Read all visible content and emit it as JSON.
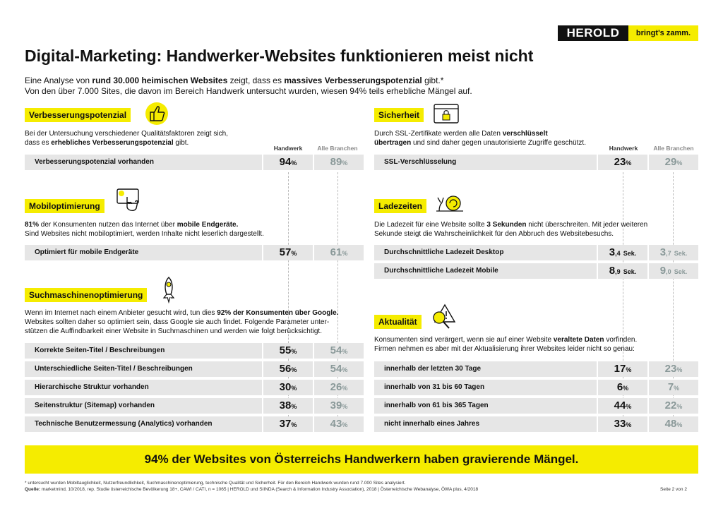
{
  "brand": {
    "logo": "HEROLD",
    "slogan": "bringt's zamm."
  },
  "title": "Digital-Marketing: Handwerker-Websites funktionieren meist nicht",
  "intro": {
    "line1_a": "Eine Analyse von ",
    "line1_b": "rund 30.000 heimischen Websites",
    "line1_c": " zeigt, dass es ",
    "line1_d": "massives Verbesserungspotenzial",
    "line1_e": " gibt.*",
    "line2": "Von den über 7.000 Sites, die davon im Bereich Handwerk untersucht wurden, wiesen 94% teils erhebliche Mängel auf."
  },
  "col_headers": {
    "handwerk": "Handwerk",
    "alle": "Alle Branchen"
  },
  "verbesserung": {
    "title": "Verbesserungspotenzial",
    "desc_1": "Bei der Untersuchung verschiedener Qualitätsfaktoren zeigt sich,",
    "desc_2a": "dass es ",
    "desc_2b": "erhebliches Verbesserungspotenzial",
    "desc_2c": " gibt.",
    "rows": [
      {
        "label": "Verbesserungspotenzial vorhanden",
        "v1": "94",
        "v2": "89"
      }
    ]
  },
  "mobil": {
    "title": "Mobiloptimierung",
    "desc_1a": "81%",
    "desc_1b": " der Konsumenten nutzen das Internet über ",
    "desc_1c": "mobile Endgeräte.",
    "desc_2": "Sind Websites nicht mobiloptimiert, werden Inhalte nicht leserlich dargestellt.",
    "rows": [
      {
        "label": "Optimiert für mobile Endgeräte",
        "v1": "57",
        "v2": "61"
      }
    ]
  },
  "seo": {
    "title": "Suchmaschinenoptimierung",
    "desc_1a": "Wenn im Internet nach einem Anbieter gesucht wird, tun dies ",
    "desc_1b": "92% der Konsumenten über Google.",
    "desc_2": "Websites sollten daher so optimiert sein, dass Google sie auch findet. Folgende Parameter unter-",
    "desc_3": "stützen die Auffindbarkeit einer Website in Suchmaschinen und werden wie folgt berücksichtigt.",
    "rows": [
      {
        "label": "Korrekte Seiten-Titel / Beschreibungen",
        "v1": "55",
        "v2": "54"
      },
      {
        "label": "Unterschiedliche Seiten-Titel / Beschreibungen",
        "v1": "56",
        "v2": "54"
      },
      {
        "label": "Hierarchische Struktur vorhanden",
        "v1": "30",
        "v2": "26"
      },
      {
        "label": "Seitenstruktur (Sitemap) vorhanden",
        "v1": "38",
        "v2": "39"
      },
      {
        "label": "Technische Benutzermessung (Analytics) vorhanden",
        "v1": "37",
        "v2": "43"
      }
    ]
  },
  "sicherheit": {
    "title": "Sicherheit",
    "desc_1a": "Durch SSL-Zertifikate werden alle Daten ",
    "desc_1b": "verschlüsselt",
    "desc_2a": "übertragen",
    "desc_2b": " und sind daher gegen unautorisierte Zugriffe geschützt.",
    "rows": [
      {
        "label": "SSL-Verschlüsselung",
        "v1": "23",
        "v2": "29"
      }
    ]
  },
  "ladezeiten": {
    "title": "Ladezeiten",
    "desc_1a": "Die Ladezeit für eine Website sollte ",
    "desc_1b": "3 Sekunden",
    "desc_1c": " nicht überschreiten. Mit jeder weiteren",
    "desc_2": "Sekunde steigt die Wahrscheinlichkeit für den Abbruch des Websitebesuchs.",
    "unit": "Sek.",
    "rows": [
      {
        "label": "Durchschnittliche Ladezeit Desktop",
        "v1_int": "3",
        "v1_dec": ",4",
        "v2_int": "3",
        "v2_dec": ",7"
      },
      {
        "label": "Durchschnittliche Ladezeit Mobile",
        "v1_int": "8",
        "v1_dec": ",9",
        "v2_int": "9",
        "v2_dec": ",0"
      }
    ]
  },
  "aktualitaet": {
    "title": "Aktualität",
    "desc_1a": "Konsumenten sind verärgert, wenn sie auf einer Website ",
    "desc_1b": "veraltete Daten",
    "desc_1c": " vorfinden.",
    "desc_2": "Firmen nehmen es aber mit der Aktualisierung ihrer Websites leider nicht so genau:",
    "rows": [
      {
        "label": "innerhalb der letzten 30 Tage",
        "v1": "17",
        "v2": "23"
      },
      {
        "label": "innerhalb von 31 bis 60 Tagen",
        "v1": "6",
        "v2": "7"
      },
      {
        "label": "innerhalb von 61 bis 365 Tagen",
        "v1": "44",
        "v2": "22"
      },
      {
        "label": "nicht innerhalb eines Jahres",
        "v1": "33",
        "v2": "48"
      }
    ]
  },
  "pct": "%",
  "banner": "94% der Websites von Österreichs Handwerkern haben gravierende Mängel.",
  "footnote": "* untersucht wurden Mobiltauglichkeit, Nutzerfreundlichkeit, Suchmaschinenoptimierung, technische Qualität und Sicherheit. Für den Bereich Handwerk wurden rund 7.000 Sites analysiert.",
  "source_label": "Quelle:",
  "source": " marketmind, 10/2018, rep. Studie österreichische Bevölkerung 18+, CAWI / CATI, n = 1065 | HEROLD und SIINDA (Search & Information Industry Association), 2018 | Österreichische Webanalyse, ÖWA plus, 4/2018",
  "page": "Seite 2 von 2"
}
